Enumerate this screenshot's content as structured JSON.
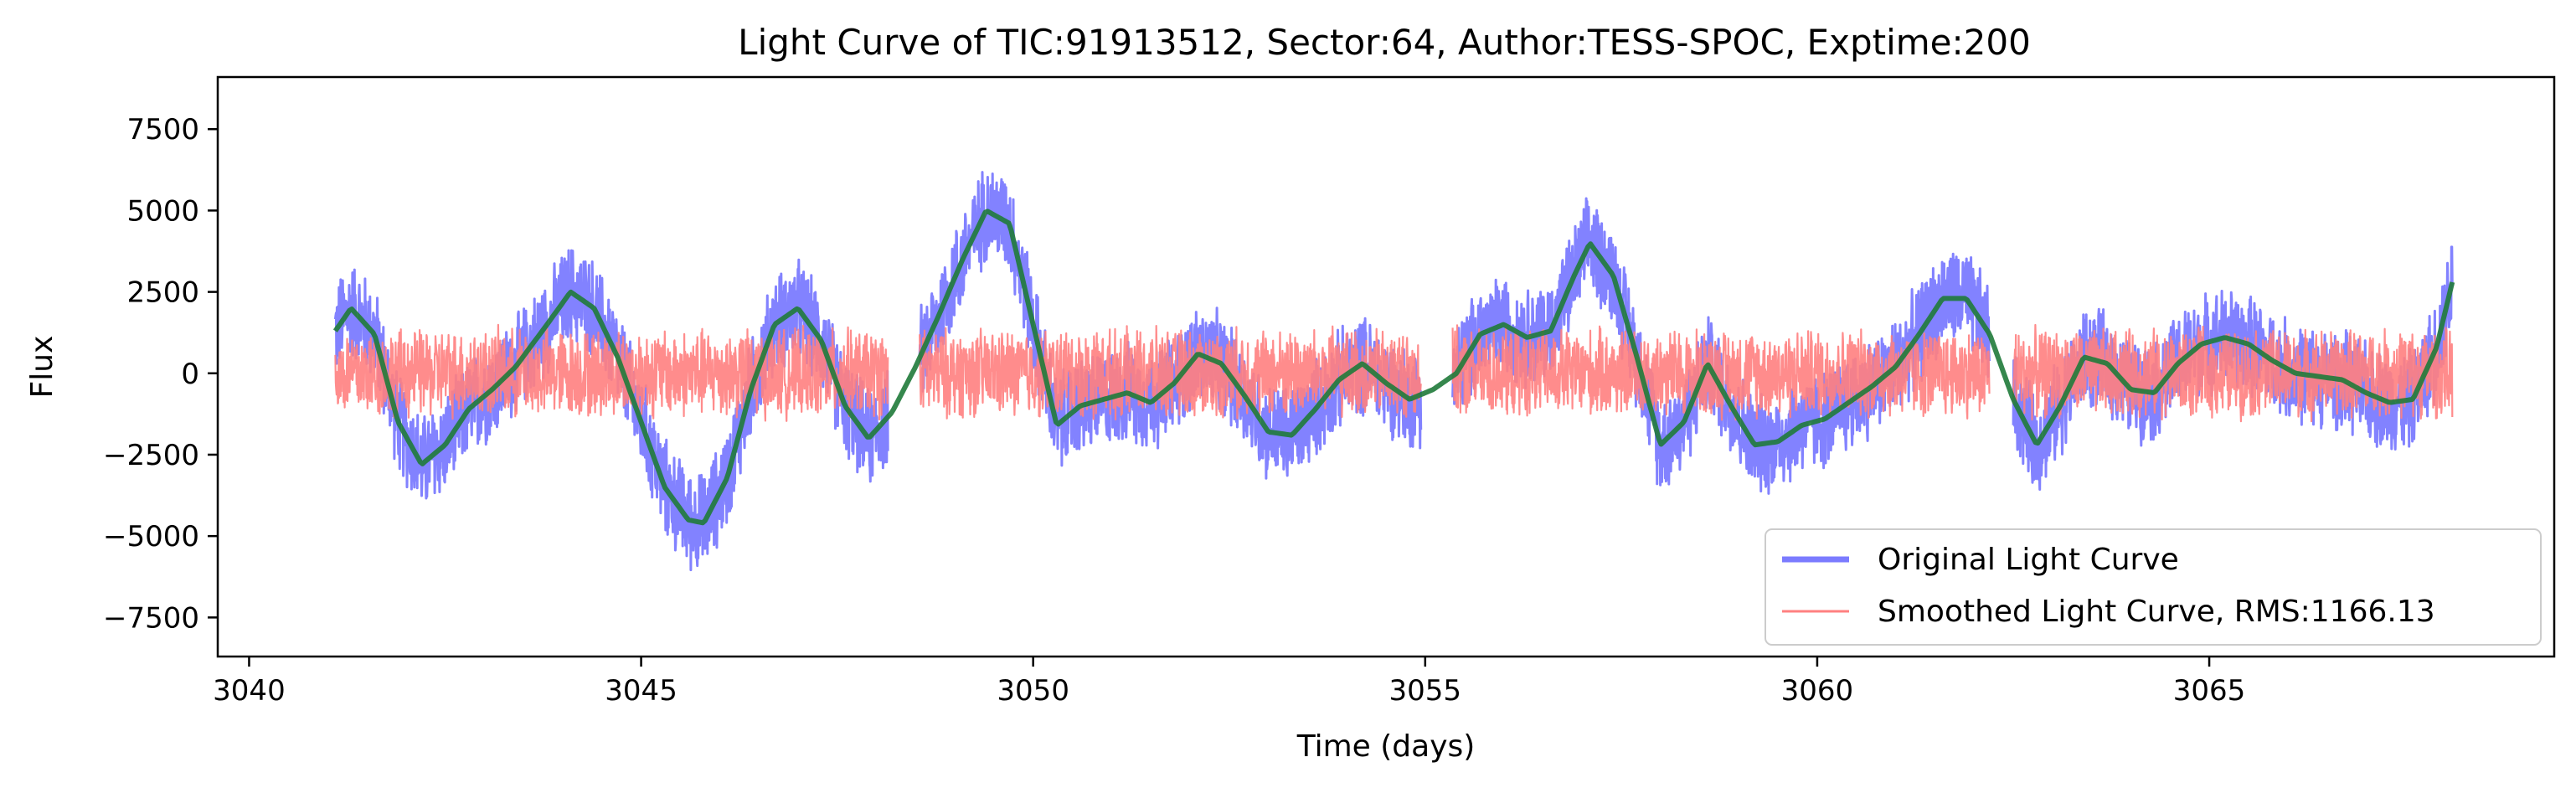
{
  "chart_data": {
    "type": "line",
    "title": "Light Curve of TIC:91913512, Sector:64, Author:TESS-SPOC, Exptime:200",
    "xlabel": "Time (days)",
    "ylabel": "Flux",
    "xlim": [
      3039.6,
      3069.4
    ],
    "ylim": [
      -8700,
      9100
    ],
    "xticks": [
      3040,
      3045,
      3050,
      3055,
      3060,
      3065
    ],
    "yticks": [
      -7500,
      -5000,
      -2500,
      0,
      2500,
      5000,
      7500
    ],
    "ytick_labels": [
      "−7500",
      "−5000",
      "−2500",
      "0",
      "2500",
      "5000",
      "7500"
    ],
    "grid": false,
    "legend_position": "lower-right",
    "series": [
      {
        "name": "Original Light Curve",
        "color": "#7b7bff",
        "noise_amplitude": 1700,
        "x": [
          3041.1,
          3041.3,
          3041.6,
          3041.9,
          3042.2,
          3042.5,
          3042.8,
          3043.1,
          3043.4,
          3043.8,
          3044.1,
          3044.4,
          3044.7,
          3045.0,
          3045.3,
          3045.6,
          3045.8,
          3046.1,
          3046.4,
          3046.7,
          3047.0,
          3047.3,
          3047.6,
          3047.9,
          3048.2,
          3048.5,
          3048.8,
          3049.1,
          3049.4,
          3049.7,
          3050.0,
          3050.3,
          3050.6,
          3050.9,
          3051.2,
          3051.5,
          3051.8,
          3052.1,
          3052.4,
          3052.7,
          3053.0,
          3053.3,
          3053.6,
          3053.9,
          3054.2,
          3054.5,
          3054.8,
          3055.1,
          3055.4,
          3055.7,
          3056.0,
          3056.3,
          3056.6,
          3056.9,
          3057.1,
          3057.4,
          3057.7,
          3058.0,
          3058.3,
          3058.6,
          3058.9,
          3059.2,
          3059.5,
          3059.8,
          3060.1,
          3060.4,
          3060.7,
          3061.0,
          3061.3,
          3061.6,
          3061.9,
          3062.2,
          3062.5,
          3062.8,
          3063.1,
          3063.4,
          3063.7,
          3064.0,
          3064.3,
          3064.6,
          3064.9,
          3065.2,
          3065.5,
          3065.8,
          3066.1,
          3066.4,
          3066.7,
          3067.0,
          3067.3,
          3067.6,
          3067.9,
          3068.1
        ],
        "values": [
          1300,
          2000,
          1200,
          -1500,
          -2800,
          -2200,
          -1100,
          -500,
          200,
          1500,
          2500,
          2000,
          500,
          -1500,
          -3500,
          -4500,
          -4600,
          -3200,
          -500,
          1500,
          2000,
          1000,
          -1000,
          -2000,
          -1200,
          200,
          1800,
          3500,
          5000,
          4600,
          1500,
          -1600,
          -1000,
          -800,
          -600,
          -900,
          -300,
          600,
          300,
          -700,
          -1800,
          -1900,
          -1100,
          -200,
          300,
          -300,
          -800,
          -500,
          0,
          1200,
          1500,
          1100,
          1300,
          3000,
          4000,
          3000,
          500,
          -2200,
          -1500,
          300,
          -1000,
          -2200,
          -2100,
          -1600,
          -1400,
          -900,
          -400,
          200,
          1200,
          2300,
          2300,
          1200,
          -800,
          -2200,
          -1000,
          500,
          300,
          -500,
          -600,
          300,
          900,
          1100,
          900,
          400,
          0,
          -100,
          -200,
          -600,
          -900,
          -800,
          800,
          2800
        ]
      },
      {
        "name": "Smoothed Light Curve, RMS:1166.13",
        "color": "#ff8080",
        "noise_amplitude": 1500,
        "x": [
          3041.1,
          3068.1
        ],
        "values": [
          0,
          0
        ]
      },
      {
        "name": "",
        "color": "#1f7a3a",
        "x": [
          3041.1,
          3041.3,
          3041.6,
          3041.9,
          3042.2,
          3042.5,
          3042.8,
          3043.1,
          3043.4,
          3043.8,
          3044.1,
          3044.4,
          3044.7,
          3045.0,
          3045.3,
          3045.6,
          3045.8,
          3046.1,
          3046.4,
          3046.7,
          3047.0,
          3047.3,
          3047.6,
          3047.9,
          3048.2,
          3048.5,
          3048.8,
          3049.1,
          3049.4,
          3049.7,
          3050.0,
          3050.3,
          3050.6,
          3050.9,
          3051.2,
          3051.5,
          3051.8,
          3052.1,
          3052.4,
          3052.7,
          3053.0,
          3053.3,
          3053.6,
          3053.9,
          3054.2,
          3054.5,
          3054.8,
          3055.1,
          3055.4,
          3055.7,
          3056.0,
          3056.3,
          3056.6,
          3056.9,
          3057.1,
          3057.4,
          3057.7,
          3058.0,
          3058.3,
          3058.6,
          3058.9,
          3059.2,
          3059.5,
          3059.8,
          3060.1,
          3060.4,
          3060.7,
          3061.0,
          3061.3,
          3061.6,
          3061.9,
          3062.2,
          3062.5,
          3062.8,
          3063.1,
          3063.4,
          3063.7,
          3064.0,
          3064.3,
          3064.6,
          3064.9,
          3065.2,
          3065.5,
          3065.8,
          3066.1,
          3066.4,
          3066.7,
          3067.0,
          3067.3,
          3067.6,
          3067.9,
          3068.1
        ],
        "values": [
          1300,
          2000,
          1200,
          -1500,
          -2800,
          -2200,
          -1100,
          -500,
          200,
          1500,
          2500,
          2000,
          500,
          -1500,
          -3500,
          -4500,
          -4600,
          -3200,
          -500,
          1500,
          2000,
          1000,
          -1000,
          -2000,
          -1200,
          200,
          1800,
          3500,
          5000,
          4600,
          1500,
          -1600,
          -1000,
          -800,
          -600,
          -900,
          -300,
          600,
          300,
          -700,
          -1800,
          -1900,
          -1100,
          -200,
          300,
          -300,
          -800,
          -500,
          0,
          1200,
          1500,
          1100,
          1300,
          3000,
          4000,
          3000,
          500,
          -2200,
          -1500,
          300,
          -1000,
          -2200,
          -2100,
          -1600,
          -1400,
          -900,
          -400,
          200,
          1200,
          2300,
          2300,
          1200,
          -800,
          -2200,
          -1000,
          500,
          300,
          -500,
          -600,
          300,
          900,
          1100,
          900,
          400,
          0,
          -100,
          -200,
          -600,
          -900,
          -800,
          800,
          2800
        ]
      }
    ],
    "legend": [
      {
        "label": "Original Light Curve",
        "color": "#7b7bff",
        "width": 7
      },
      {
        "label": "Smoothed Light Curve, RMS:1166.13",
        "color": "#ff8080",
        "width": 3
      }
    ]
  }
}
